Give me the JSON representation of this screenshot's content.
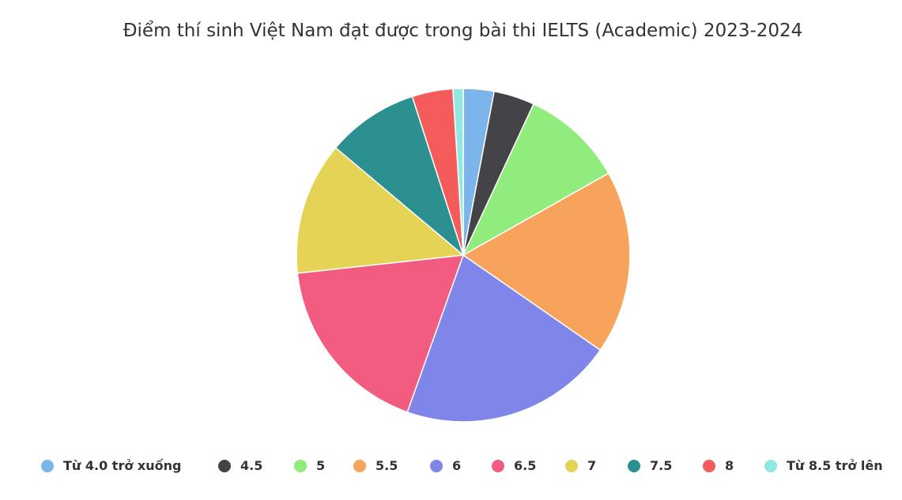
{
  "chart_data": {
    "type": "pie",
    "title": "Điểm thí sinh Việt Nam đạt được trong bài thi IELTS (Academic) 2023-2024",
    "categories": [
      "Từ 4.0 trở xuống",
      "4.5",
      "5",
      "5.5",
      "6",
      "6.5",
      "7",
      "7.5",
      "8",
      "Từ 8.5 trở lên"
    ],
    "values": [
      3,
      4,
      10,
      18,
      21,
      18,
      13,
      9,
      4,
      1
    ],
    "unit": "percent (estimated)",
    "colors": [
      "#7cb5ec",
      "#434348",
      "#90ed7d",
      "#f7a35c",
      "#8085e9",
      "#f15c80",
      "#e4d354",
      "#2b908f",
      "#f45b5b",
      "#91e8e1"
    ],
    "legend": "bottom",
    "start_angle": "top, clockwise"
  }
}
